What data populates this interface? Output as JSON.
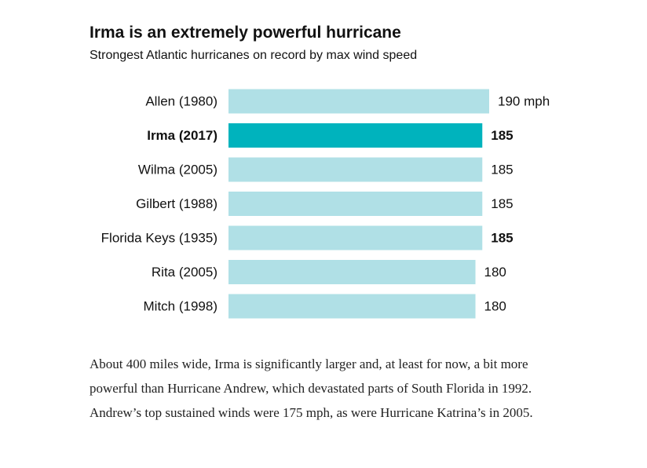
{
  "title": "Irma is an extremely powerful hurricane",
  "subtitle": "Strongest Atlantic hurricanes on record by max wind speed",
  "colors": {
    "bar": "#b0e0e6",
    "highlight_bar": "#00b3bd",
    "text": "#111111"
  },
  "chart_data": {
    "type": "bar",
    "orientation": "horizontal",
    "title": "Irma is an extremely powerful hurricane",
    "subtitle": "Strongest Atlantic hurricanes on record by max wind speed",
    "categories": [
      "Allen (1980)",
      "Irma (2017)",
      "Wilma (2005)",
      "Gilbert (1988)",
      "Florida Keys (1935)",
      "Rita (2005)",
      "Mitch (1998)"
    ],
    "values": [
      190,
      185,
      185,
      185,
      185,
      180,
      180
    ],
    "value_labels": [
      "190 mph",
      "185",
      "185",
      "185",
      "185",
      "180",
      "180"
    ],
    "bold_categories": [
      false,
      true,
      false,
      false,
      false,
      false,
      false
    ],
    "bold_values": [
      false,
      true,
      false,
      false,
      true,
      false,
      false
    ],
    "highlight": [
      false,
      true,
      false,
      false,
      false,
      false,
      false
    ],
    "unit": "mph",
    "xlim": [
      0,
      190
    ],
    "grid": false
  },
  "body_text": "About 400 miles wide, Irma is significantly larger and, at least for now, a bit more powerful than Hurricane Andrew, which devastated parts of South Florida in 1992. Andrew’s top sustained winds were 175 mph, as were Hurricane Katrina’s in 2005."
}
